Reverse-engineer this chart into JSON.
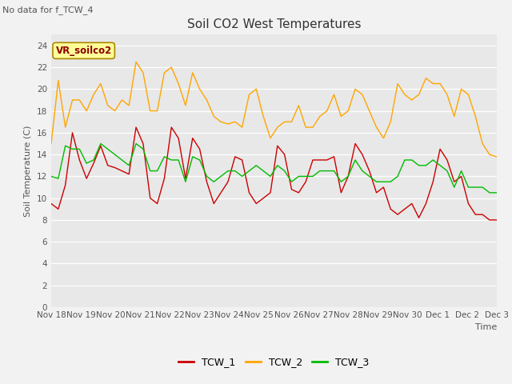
{
  "title": "Soil CO2 West Temperatures",
  "no_data_text": "No data for f_TCW_4",
  "annotation_text": "VR_soilco2",
  "xlabel": "Time",
  "ylabel": "Soil Temperature (C)",
  "ylim": [
    0,
    25
  ],
  "yticks": [
    0,
    2,
    4,
    6,
    8,
    10,
    12,
    14,
    16,
    18,
    20,
    22,
    24
  ],
  "x_labels": [
    "Nov 18",
    "Nov 19",
    "Nov 20",
    "Nov 21",
    "Nov 22",
    "Nov 23",
    "Nov 24",
    "Nov 25",
    "Nov 26",
    "Nov 27",
    "Nov 28",
    "Nov 29",
    "Nov 30",
    "Dec 1",
    "Dec 2",
    "Dec 3"
  ],
  "bg_color": "#e8e8e8",
  "fig_color": "#f2f2f2",
  "line_colors": {
    "TCW_1": "#cc0000",
    "TCW_2": "#ffa500",
    "TCW_3": "#00bb00"
  },
  "TCW_1": [
    9.5,
    9.0,
    11.2,
    16.0,
    13.5,
    11.8,
    13.2,
    14.8,
    13.0,
    12.8,
    12.5,
    12.2,
    16.5,
    15.0,
    10.0,
    9.5,
    11.8,
    16.5,
    15.5,
    11.8,
    15.5,
    14.5,
    11.5,
    9.5,
    10.5,
    11.5,
    13.8,
    13.5,
    10.5,
    9.5,
    10.0,
    10.5,
    14.8,
    14.0,
    10.8,
    10.5,
    11.5,
    13.5,
    13.5,
    13.5,
    13.8,
    10.5,
    12.0,
    15.0,
    14.0,
    12.5,
    10.5,
    11.0,
    9.0,
    8.5,
    9.0,
    9.5,
    8.2,
    9.5,
    11.5,
    14.5,
    13.5,
    11.5,
    12.0,
    9.5,
    8.5,
    8.5,
    8.0,
    8.0
  ],
  "TCW_2": [
    15.0,
    20.8,
    16.5,
    19.0,
    19.0,
    18.0,
    19.5,
    20.5,
    18.5,
    18.0,
    19.0,
    18.5,
    22.5,
    21.5,
    18.0,
    18.0,
    21.5,
    22.0,
    20.5,
    18.5,
    21.5,
    20.0,
    19.0,
    17.5,
    17.0,
    16.8,
    17.0,
    16.5,
    19.5,
    20.0,
    17.5,
    15.5,
    16.5,
    17.0,
    17.0,
    18.5,
    16.5,
    16.5,
    17.5,
    18.0,
    19.5,
    17.5,
    18.0,
    20.0,
    19.5,
    18.0,
    16.5,
    15.5,
    17.0,
    20.5,
    19.5,
    19.0,
    19.5,
    21.0,
    20.5,
    20.5,
    19.5,
    17.5,
    20.0,
    19.5,
    17.5,
    15.0,
    14.0,
    13.8
  ],
  "TCW_3": [
    12.0,
    11.8,
    14.8,
    14.5,
    14.5,
    13.2,
    13.5,
    15.0,
    14.5,
    14.0,
    13.5,
    13.0,
    15.0,
    14.5,
    12.5,
    12.5,
    13.8,
    13.5,
    13.5,
    11.5,
    13.8,
    13.5,
    12.0,
    11.5,
    12.0,
    12.5,
    12.5,
    12.0,
    12.5,
    13.0,
    12.5,
    12.0,
    13.0,
    12.5,
    11.5,
    12.0,
    12.0,
    12.0,
    12.5,
    12.5,
    12.5,
    11.5,
    12.0,
    13.5,
    12.5,
    12.0,
    11.5,
    11.5,
    11.5,
    12.0,
    13.5,
    13.5,
    13.0,
    13.0,
    13.5,
    13.0,
    12.5,
    11.0,
    12.5,
    11.0,
    11.0,
    11.0,
    10.5,
    10.5
  ]
}
